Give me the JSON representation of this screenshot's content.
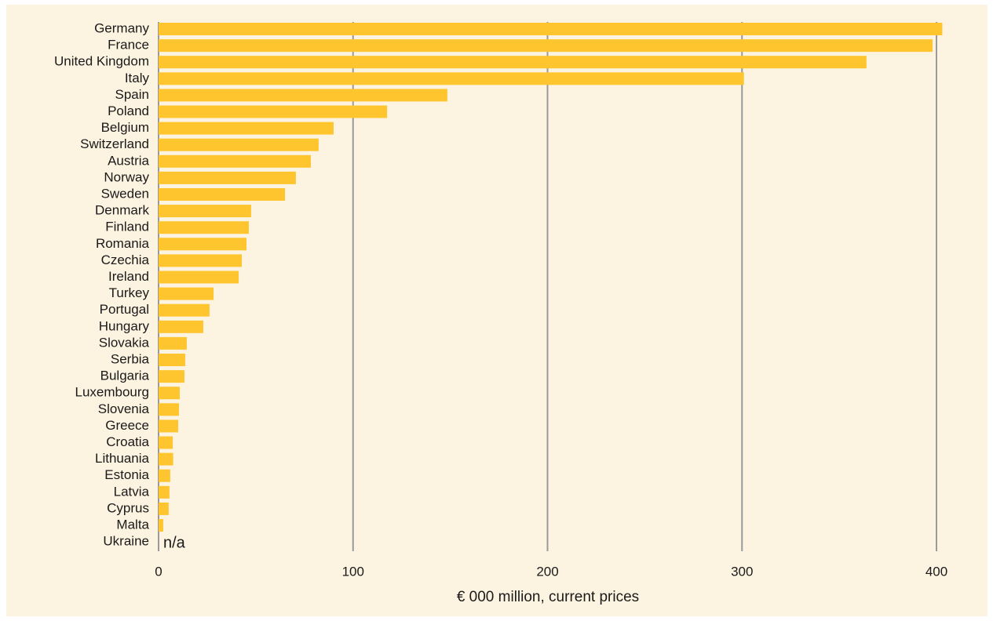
{
  "chart_data": {
    "type": "bar",
    "orientation": "horizontal",
    "x_label": "€ 000 million, current prices",
    "categories": [
      "Germany",
      "France",
      "United Kingdom",
      "Italy",
      "Spain",
      "Poland",
      "Belgium",
      "Switzerland",
      "Austria",
      "Norway",
      "Sweden",
      "Denmark",
      "Finland",
      "Romania",
      "Czechia",
      "Ireland",
      "Turkey",
      "Portugal",
      "Hungary",
      "Slovakia",
      "Serbia",
      "Bulgaria",
      "Luxembourg",
      "Slovenia",
      "Greece",
      "Croatia",
      "Lithuania",
      "Estonia",
      "Latvia",
      "Cyprus",
      "Malta",
      "Ukraine"
    ],
    "values": [
      403,
      398,
      364,
      301,
      148.5,
      117.5,
      90,
      82.3,
      78.3,
      70.6,
      65,
      47.6,
      46.4,
      45.2,
      42.8,
      41.2,
      28.3,
      26.2,
      23,
      14.5,
      13.7,
      13.3,
      10.9,
      10.5,
      10.1,
      7.3,
      7.5,
      6,
      5.6,
      5.2,
      2.4,
      null
    ],
    "value_labels": [
      null,
      null,
      null,
      null,
      null,
      null,
      null,
      null,
      null,
      null,
      null,
      null,
      null,
      null,
      null,
      null,
      null,
      null,
      null,
      null,
      null,
      null,
      null,
      null,
      null,
      null,
      null,
      null,
      null,
      null,
      null,
      "n/a"
    ],
    "color": "#ffc52f",
    "xlim": [
      0,
      400
    ],
    "xticks": [
      0,
      100,
      200,
      300,
      400
    ],
    "grid": true
  }
}
